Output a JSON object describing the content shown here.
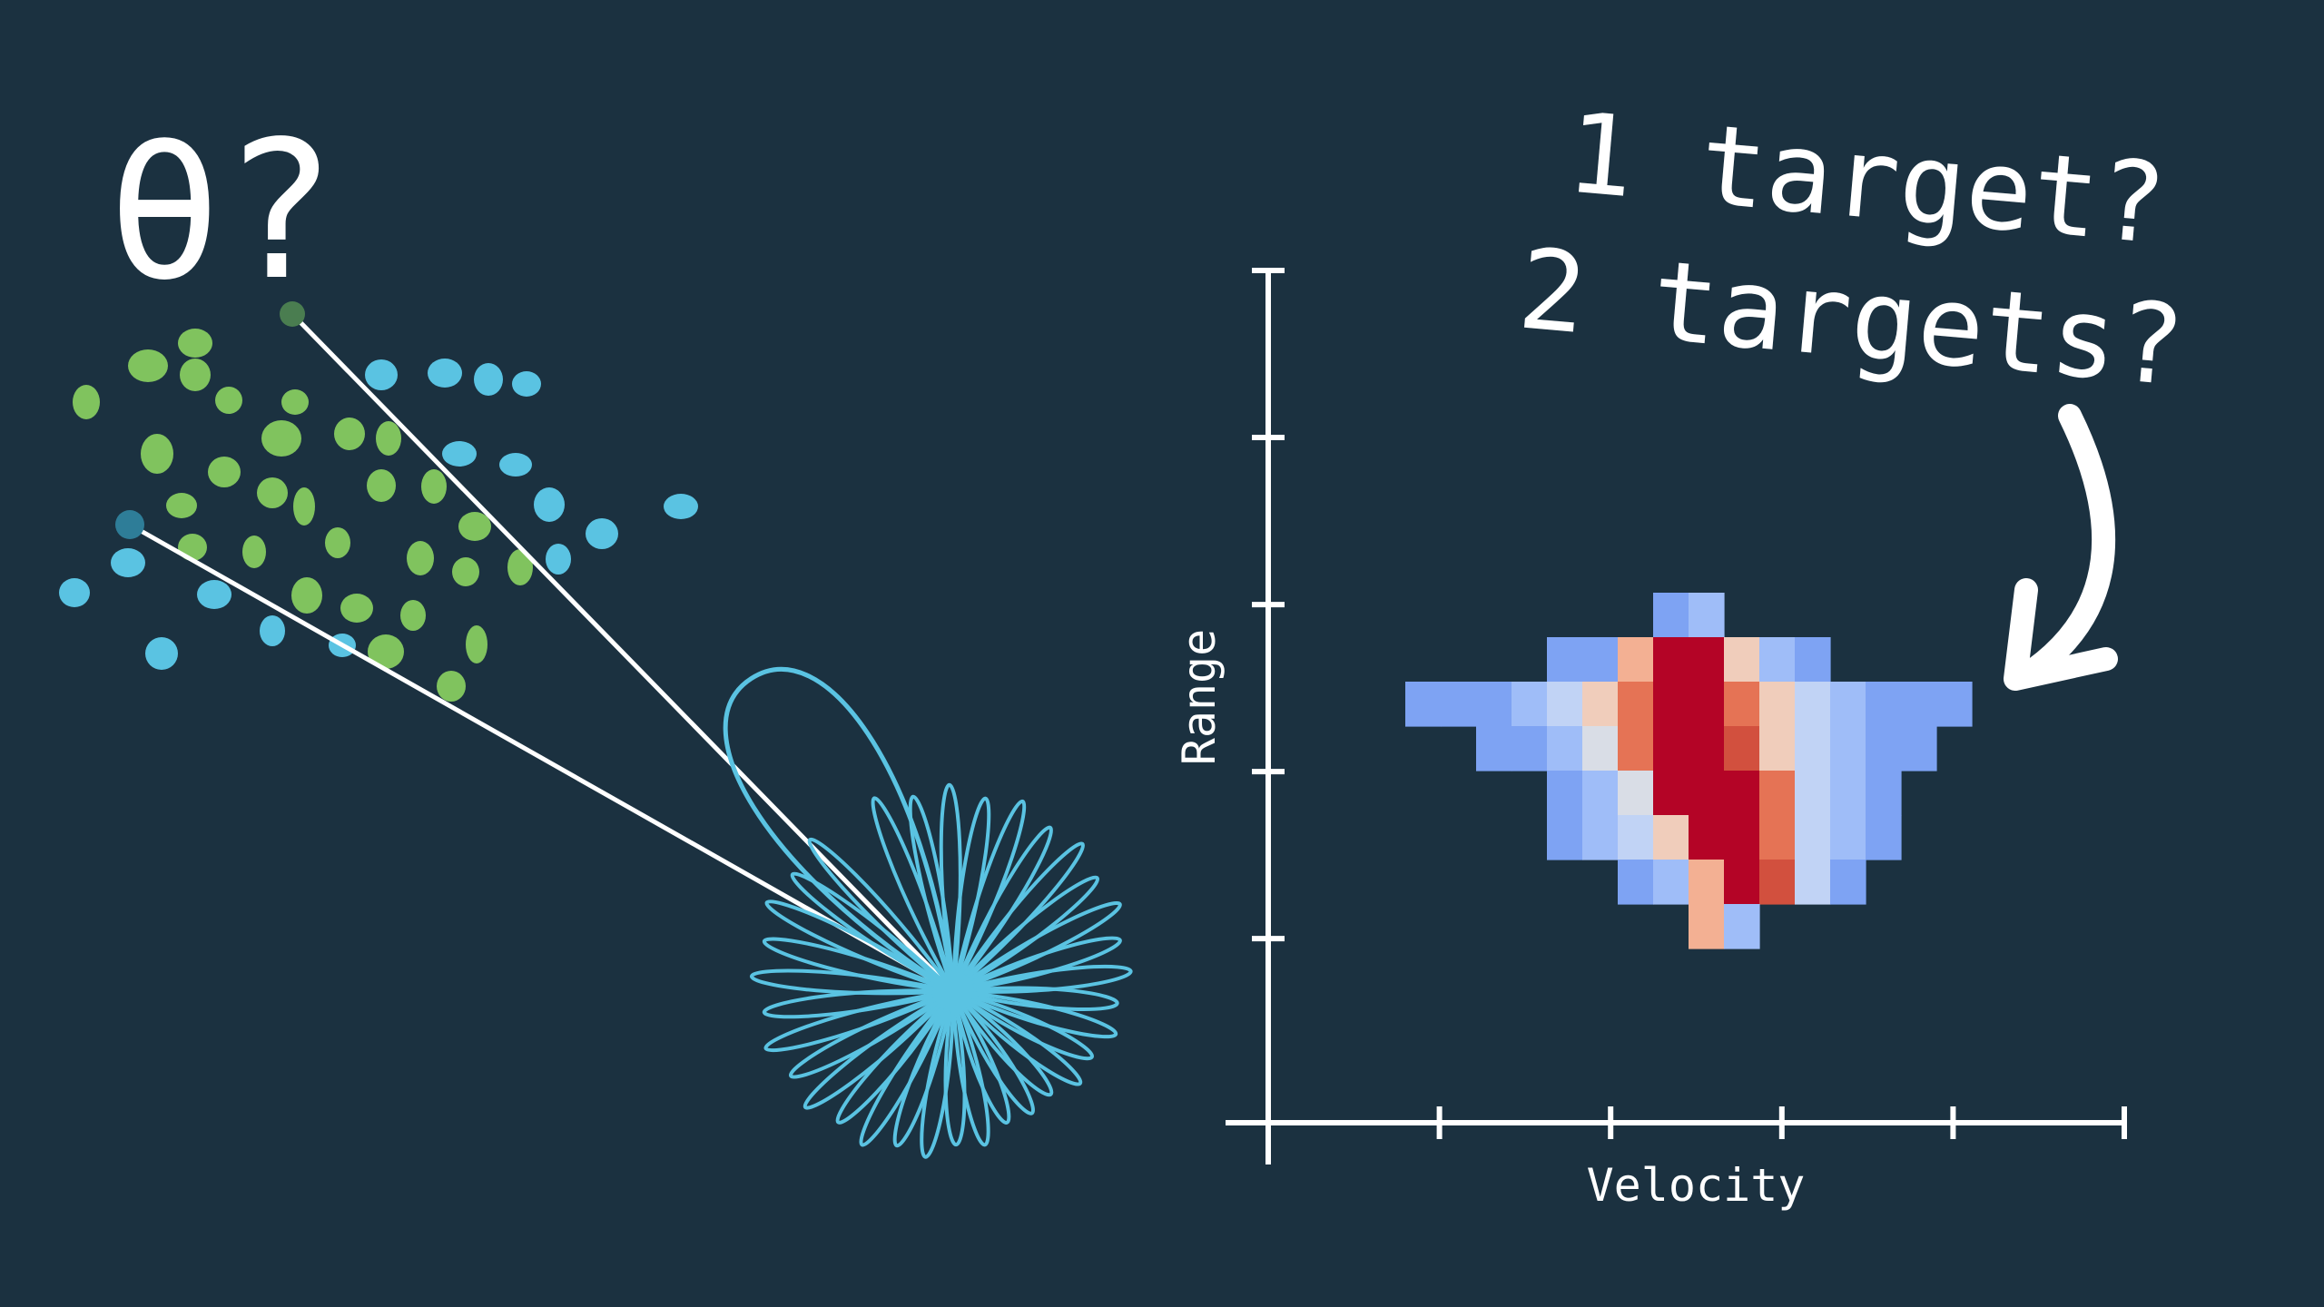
{
  "colors": {
    "background": "#1b3140",
    "green_cluster": "#80c35e",
    "blue_cluster": "#5ac3e2",
    "beam": "#5ac3e2",
    "ink": "#ffffff"
  },
  "left_panel": {
    "theta_label": "θ?",
    "green_target_icon": "green-dot-cluster-icon",
    "blue_target_icon": "blue-dot-cluster-icon",
    "antenna_pattern_icon": "radar-beam-pattern-icon"
  },
  "right_panel": {
    "question_line1": "1 target?",
    "question_line2": "2 targets?",
    "arrow_icon": "curved-arrow-down-icon"
  },
  "chart_data": {
    "type": "heatmap",
    "title": "",
    "xlabel": "Velocity",
    "ylabel": "Range",
    "grid": false,
    "x_ticks_count": 6,
    "y_ticks_count": 6,
    "rows": [
      "....................ac..............",
      "...ab.............cc...dc.......",
      "ABBBCCDEFGGHDCCBBB",
      "...CCBCDEGGHFCBB..",
      ".....BCEDFGGFECB..",
      ".......CCDFGGFCA...",
      ".........DD.ED.C..."
    ],
    "grid_cells": [
      [
        0,
        0,
        0,
        0,
        0,
        0,
        0,
        1,
        2,
        0,
        0,
        0,
        0,
        0,
        0,
        0
      ],
      [
        0,
        0,
        0,
        0,
        1,
        1,
        6,
        9,
        9,
        5,
        2,
        1,
        0,
        0,
        0,
        0
      ],
      [
        1,
        1,
        1,
        2,
        3,
        5,
        7,
        9,
        9,
        7,
        5,
        3,
        2,
        1,
        1,
        1
      ],
      [
        0,
        0,
        1,
        1,
        2,
        4,
        7,
        9,
        9,
        8,
        5,
        3,
        2,
        1,
        1,
        0
      ],
      [
        0,
        0,
        0,
        0,
        1,
        2,
        4,
        9,
        9,
        9,
        7,
        3,
        2,
        1,
        0,
        0
      ],
      [
        0,
        0,
        0,
        0,
        1,
        2,
        3,
        5,
        9,
        9,
        7,
        3,
        2,
        1,
        0,
        0
      ],
      [
        0,
        0,
        0,
        0,
        0,
        0,
        1,
        2,
        6,
        9,
        8,
        3,
        1,
        0,
        0,
        0
      ],
      [
        0,
        0,
        0,
        0,
        0,
        0,
        0,
        0,
        6,
        2,
        0,
        0,
        0,
        0,
        0,
        0
      ]
    ],
    "palette": [
      "",
      "#7ea3f3",
      "#9fbdf8",
      "#c1d3f5",
      "#d9dde6",
      "#f0cdbb",
      "#f3b093",
      "#e57355",
      "#d2503e",
      "#b40426"
    ]
  }
}
